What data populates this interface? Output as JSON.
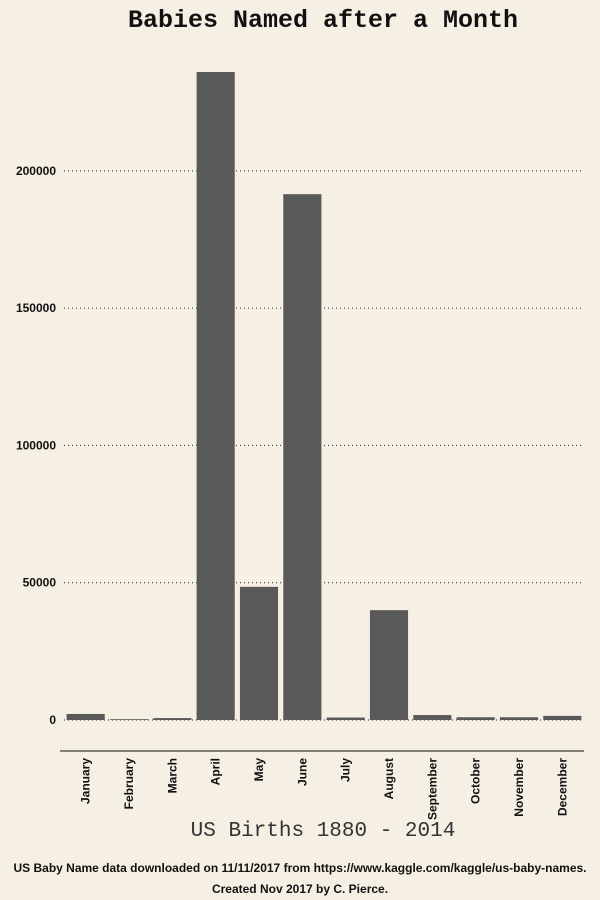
{
  "chart_data": {
    "type": "bar",
    "title": "Babies Named after a Month",
    "xlabel": "US Births 1880 - 2014",
    "ylabel": "",
    "categories": [
      "January",
      "February",
      "March",
      "April",
      "May",
      "June",
      "July",
      "August",
      "September",
      "October",
      "November",
      "December"
    ],
    "values": [
      2200,
      300,
      700,
      236000,
      48500,
      191500,
      900,
      40000,
      1800,
      1000,
      1000,
      1500
    ],
    "ylim": [
      0,
      235000
    ],
    "yticks": [
      0,
      50000,
      100000,
      150000,
      200000
    ],
    "ytick_labels": [
      "0",
      "50000",
      "100000",
      "150000",
      "200000"
    ],
    "grid": "horizontal dotted",
    "bar_color": "#595959",
    "background": "#f5f0e3"
  },
  "captions": {
    "line1": "US Baby Name data downloaded on 11/11/2017 from https://www.kaggle.com/kaggle/us-baby-names.",
    "line2": "Created Nov 2017 by C. Pierce."
  }
}
